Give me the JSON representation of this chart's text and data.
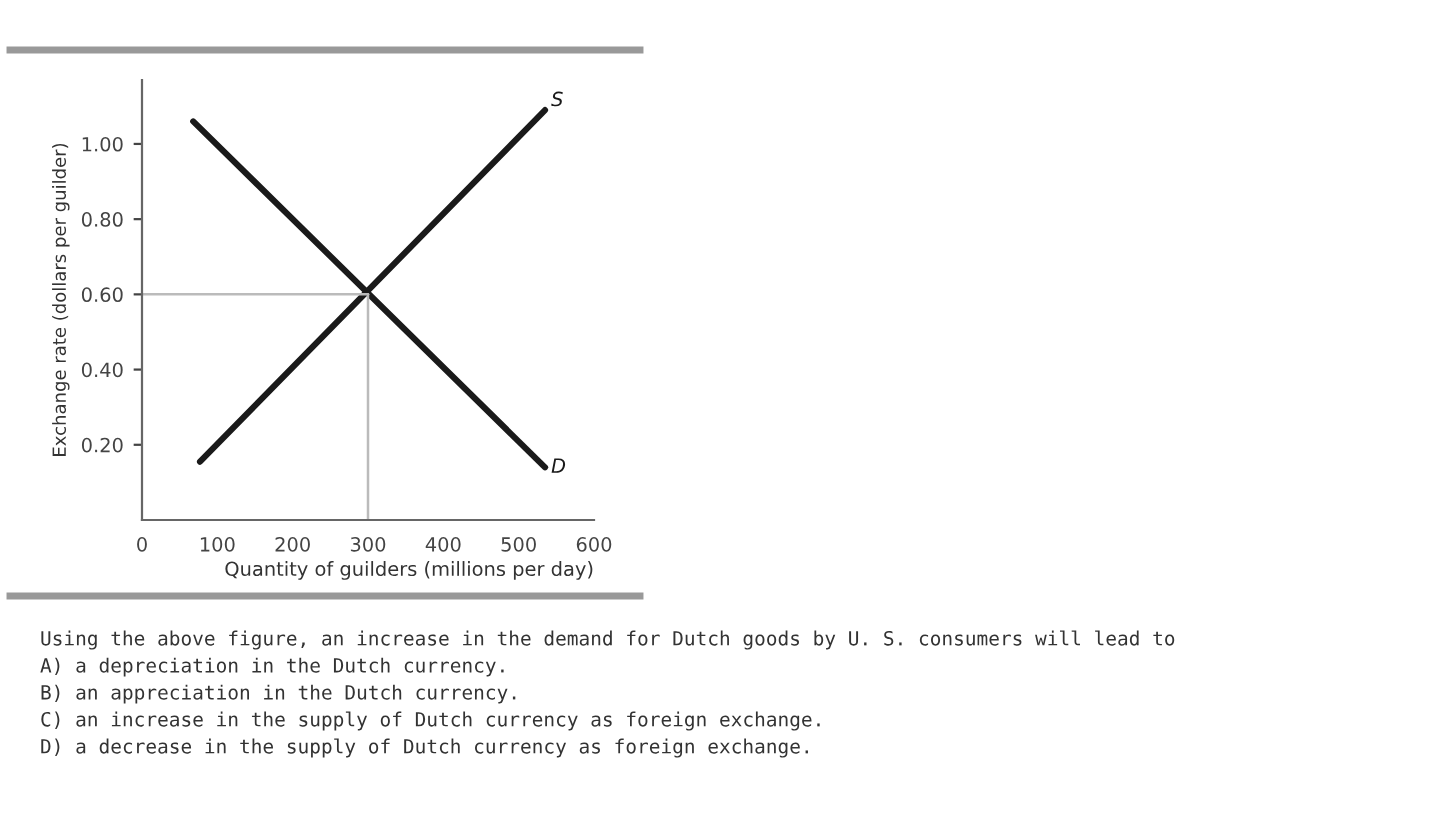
{
  "chart_data": {
    "type": "line",
    "xlabel": "Quantity of guilders (millions per day)",
    "ylabel": "Exchange rate (dollars per guilder)",
    "xlim": [
      0,
      600
    ],
    "ylim": [
      0,
      1.17
    ],
    "xticks": [
      0,
      100,
      200,
      300,
      400,
      500,
      600
    ],
    "yticks": [
      {
        "value": 0.2,
        "label": "0.20"
      },
      {
        "value": 0.4,
        "label": "0.40"
      },
      {
        "value": 0.6,
        "label": "0.60"
      },
      {
        "value": 0.8,
        "label": "0.80"
      },
      {
        "value": 1.0,
        "label": "1.00"
      }
    ],
    "series": [
      {
        "name": "S",
        "color": "#1a1a1a",
        "x": [
          77,
          535
        ],
        "values": [
          0.155,
          1.09
        ]
      },
      {
        "name": "D",
        "color": "#1a1a1a",
        "x": [
          68,
          535
        ],
        "values": [
          1.06,
          0.14
        ]
      },
      {
        "color": "#bbbbbb",
        "x": [
          0,
          300
        ],
        "values": [
          0.6,
          0.6
        ]
      },
      {
        "color": "#bbbbbb",
        "x": [
          300,
          300
        ],
        "values": [
          0,
          0.6
        ]
      }
    ],
    "grid": false,
    "legend": false,
    "annotations": [
      "Using the above figure, an increase in the demand for Dutch goods by U. S. consumers will lead to",
      "A) a depreciation in the Dutch currency.",
      "B) an appreciation in the Dutch currency.",
      "C) an increase in the supply of Dutch currency as foreign exchange.",
      "D) a decrease in the supply of Dutch currency as foreign exchange."
    ]
  }
}
